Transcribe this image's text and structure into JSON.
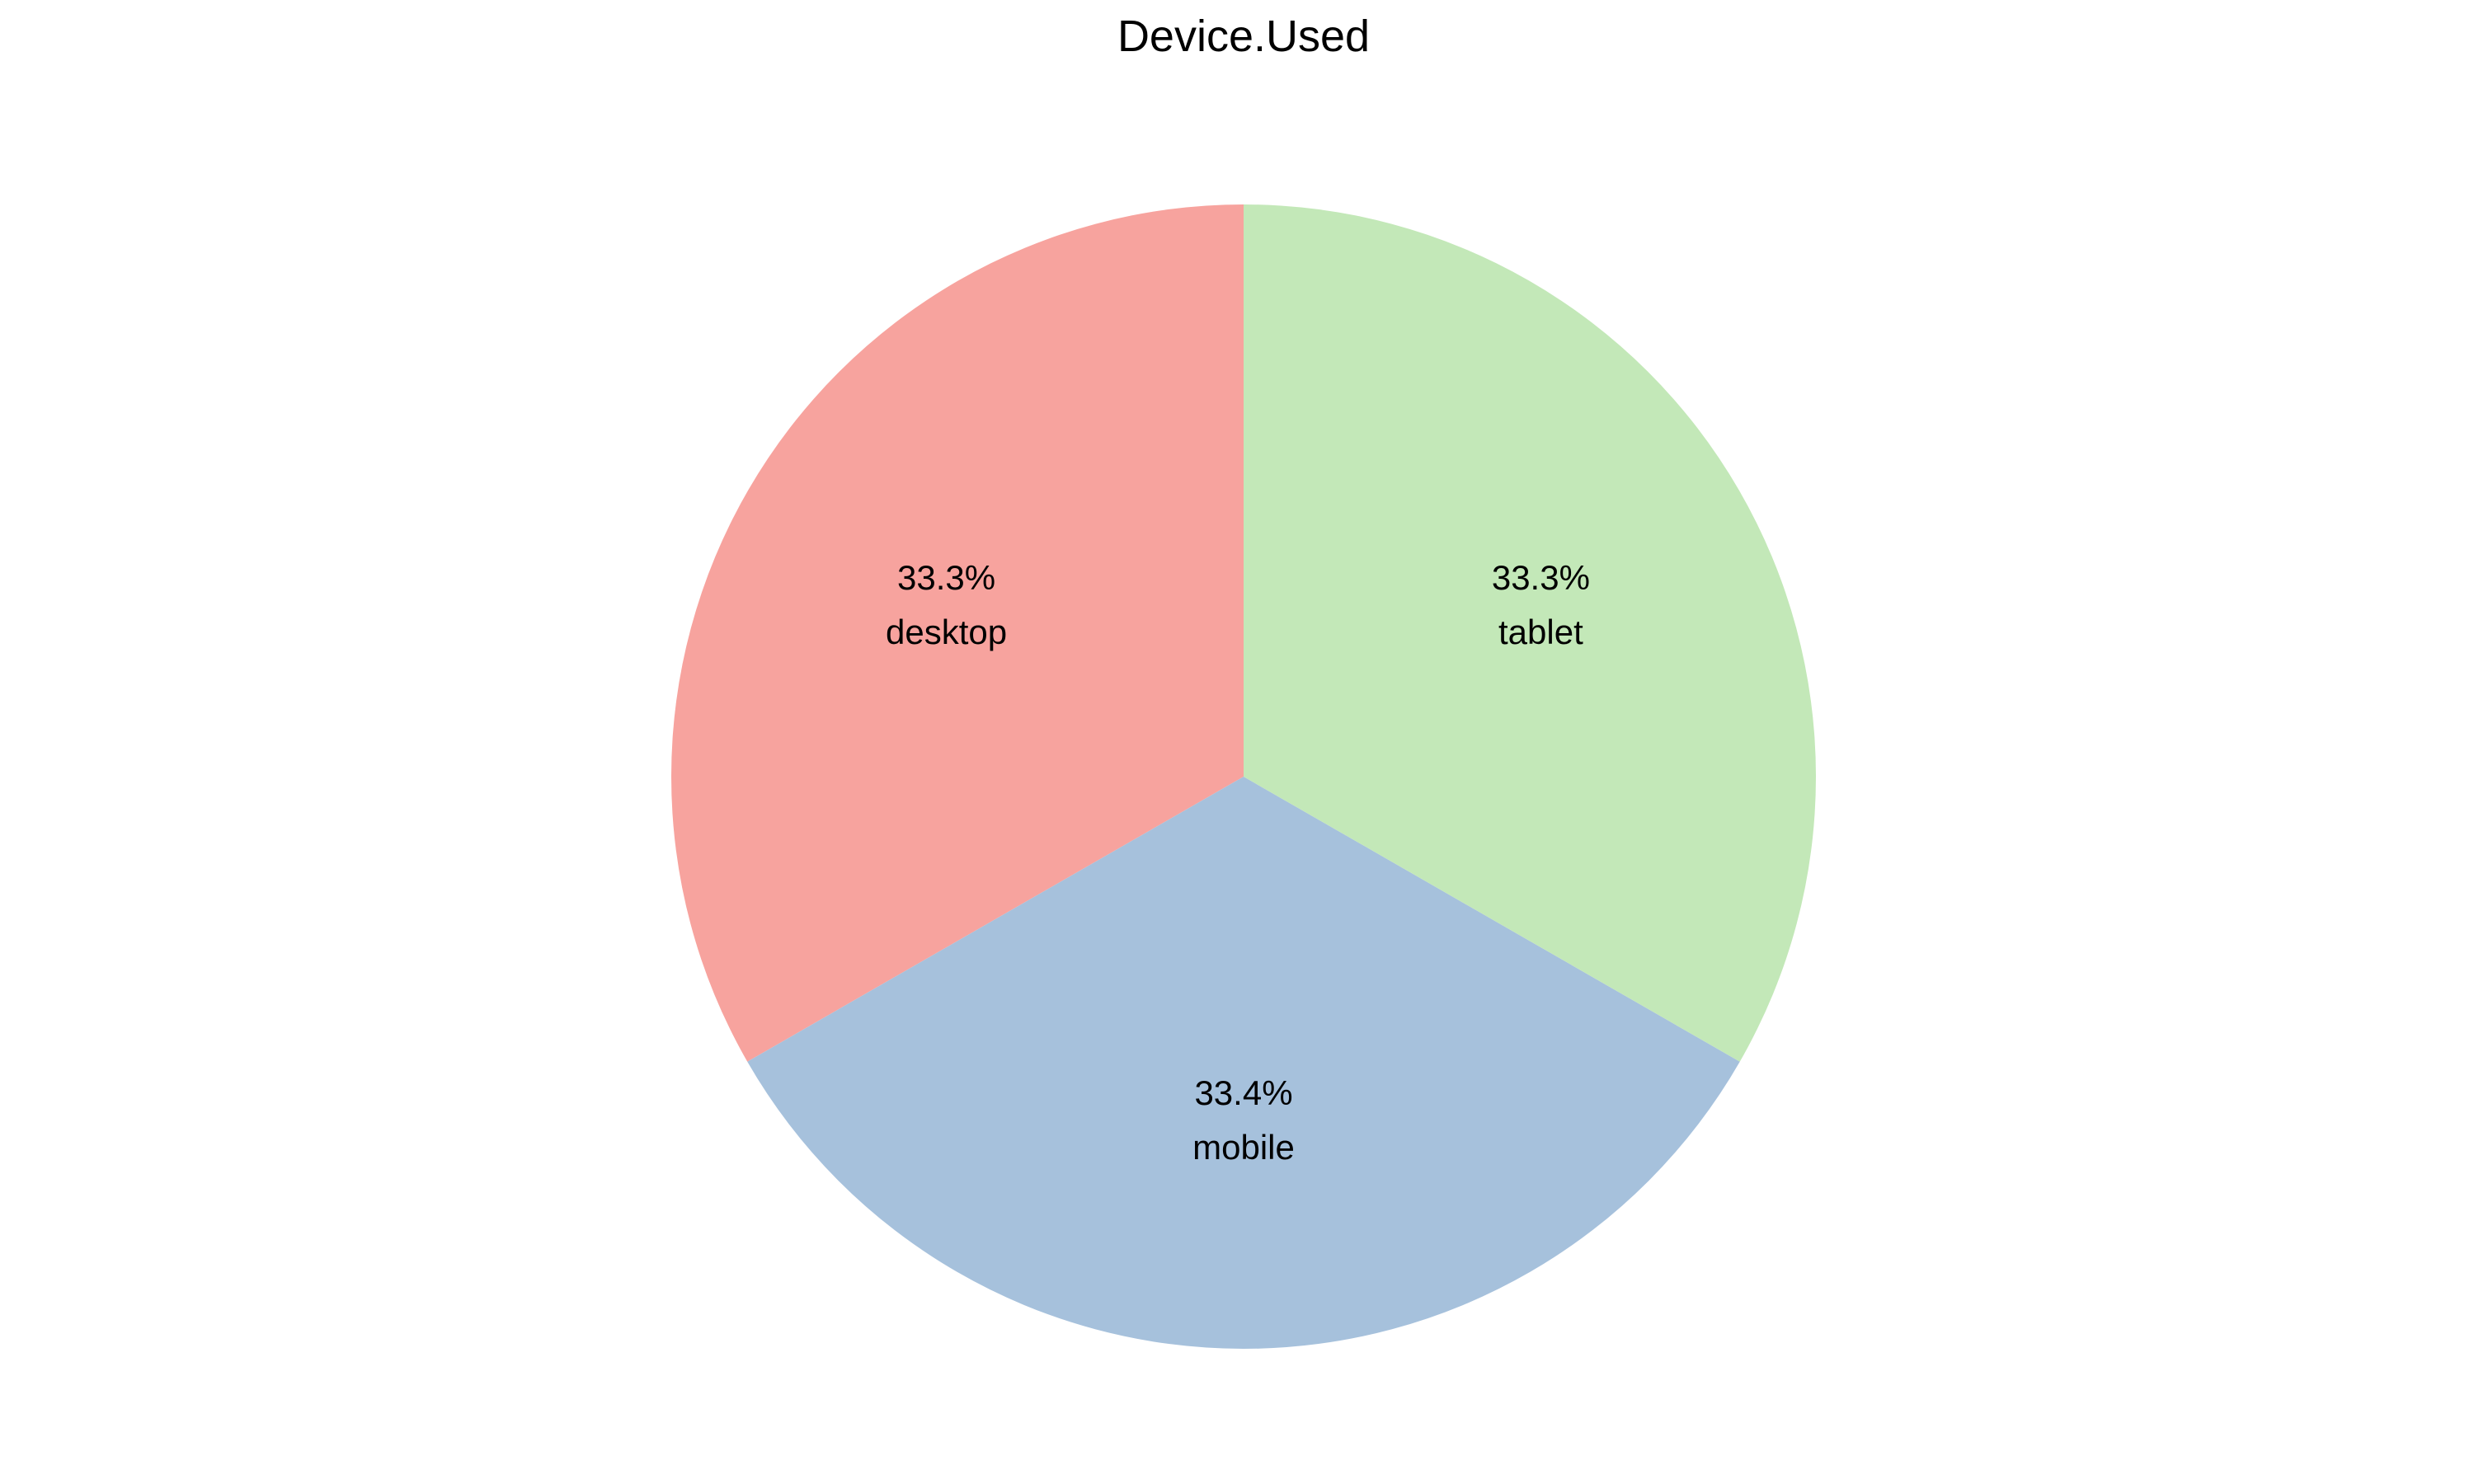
{
  "chart_data": {
    "type": "pie",
    "title": "Device.Used",
    "categories": [
      "desktop",
      "mobile",
      "tablet"
    ],
    "values": [
      33.3,
      33.4,
      33.3
    ],
    "percent_labels": [
      "33.3%",
      "33.4%",
      "33.3%"
    ],
    "colors": [
      "#f7a39e",
      "#a6c1dc",
      "#c3e8b8"
    ],
    "start_angle_deg": 90,
    "direction": "counterclockwise",
    "legend": "none"
  }
}
